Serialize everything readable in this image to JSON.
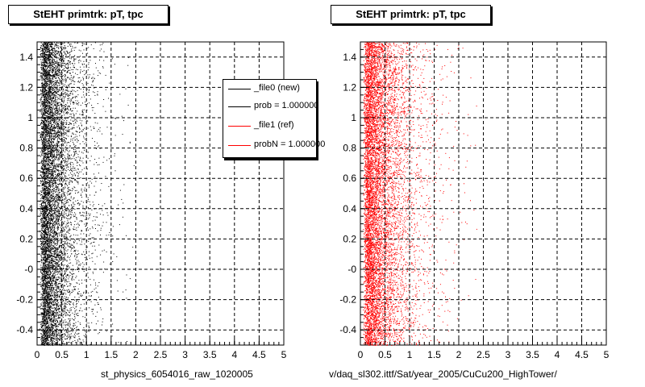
{
  "title": "StEHT primtrk: pT, tpc",
  "legend": [
    {
      "label": "_file0 (new)",
      "color": "#000000"
    },
    {
      "label": "prob = 1.000000",
      "color": "#000000"
    },
    {
      "label": "_file1 (ref)",
      "color": "#ff0000"
    },
    {
      "label": "probN = 1.000000",
      "color": "#ff0000"
    }
  ],
  "x_titles": {
    "left": "st_physics_6054016_raw_1020005",
    "right": "v/daq_sl302.ittf/Sat/year_2005/CuCu200_HighTower/"
  },
  "chart_data": [
    {
      "type": "scatter",
      "title": "StEHT primtrk: pT, tpc",
      "xlabel": "st_physics_6054016_raw_1020005",
      "ylabel": "",
      "xlim": [
        0,
        5
      ],
      "ylim": [
        -0.5,
        1.5
      ],
      "x_ticks": [
        "0",
        "0.5",
        "1",
        "1.5",
        "2",
        "2.5",
        "3",
        "3.5",
        "4",
        "4.5",
        "5"
      ],
      "y_ticks": [
        "-0.4",
        "-0.2",
        "-0",
        "0.2",
        "0.4",
        "0.6",
        "0.8",
        "1",
        "1.2",
        "1.4"
      ],
      "grid": true,
      "series": [
        {
          "name": "_file0 (new)",
          "color": "#000000",
          "points": 9000,
          "x_peak": 0.25,
          "x_spread": 0.5,
          "x_max": 2.2
        }
      ]
    },
    {
      "type": "scatter",
      "title": "StEHT primtrk: pT, tpc",
      "xlabel": "v/daq_sl302.ittf/Sat/year_2005/CuCu200_HighTower/",
      "ylabel": "",
      "xlim": [
        0,
        5
      ],
      "ylim": [
        -0.5,
        1.5
      ],
      "x_ticks": [
        "0",
        "0.5",
        "1",
        "1.5",
        "2",
        "2.5",
        "3",
        "3.5",
        "4",
        "4.5",
        "5"
      ],
      "y_ticks": [
        "-0.4",
        "-0.2",
        "-0",
        "0.2",
        "0.4",
        "0.6",
        "0.8",
        "1",
        "1.2",
        "1.4"
      ],
      "grid": true,
      "series": [
        {
          "name": "_file1 (ref)",
          "color": "#ff0000",
          "points": 9000,
          "x_peak": 0.25,
          "x_spread": 0.6,
          "x_max": 3.5
        }
      ]
    }
  ]
}
